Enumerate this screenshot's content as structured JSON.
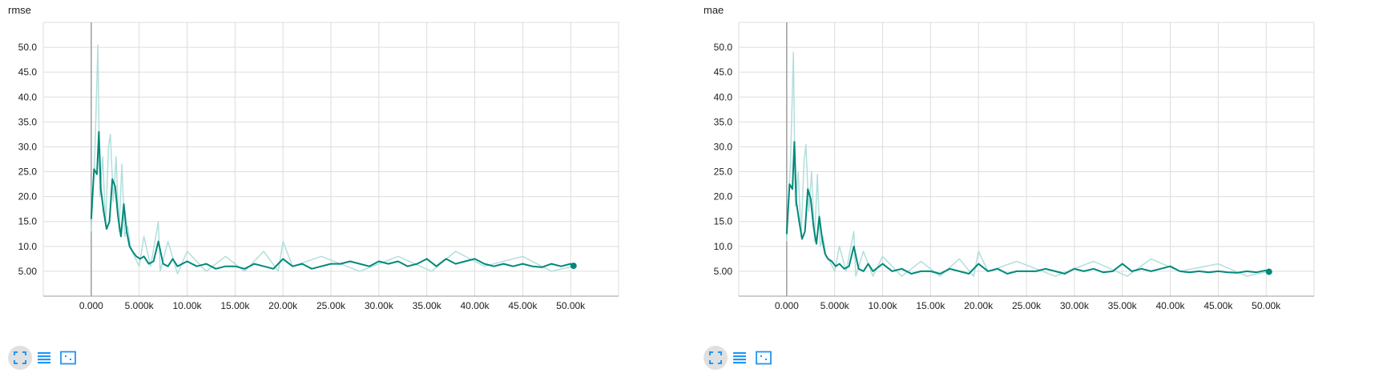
{
  "colors": {
    "line": "#00897b",
    "line_raw": "#b2dfdb",
    "grid": "#dddddd",
    "axis": "#9e9e9e",
    "zero_line": "#9e9e9e",
    "icon": "#2196f3"
  },
  "toolbar": {
    "icons": [
      "fit-domain-icon",
      "log-scale-icon",
      "toggle-y-axis-icon"
    ]
  },
  "chart_data": [
    {
      "type": "line",
      "title": "rmse",
      "xlim": [
        -5000,
        55000
      ],
      "ylim": [
        0,
        55
      ],
      "x_ticks": [
        0,
        5000,
        10000,
        15000,
        20000,
        25000,
        30000,
        35000,
        40000,
        45000,
        50000
      ],
      "x_tick_labels": [
        "0.000",
        "5.000k",
        "10.00k",
        "15.00k",
        "20.00k",
        "25.00k",
        "30.00k",
        "35.00k",
        "40.00k",
        "45.00k",
        "50.00k"
      ],
      "y_ticks": [
        5,
        10,
        15,
        20,
        25,
        30,
        35,
        40,
        45,
        50
      ],
      "y_tick_labels": [
        "5.00",
        "10.0",
        "15.0",
        "20.0",
        "25.0",
        "30.0",
        "35.0",
        "40.0",
        "45.0",
        "50.0"
      ],
      "grid": true,
      "series": [
        {
          "x": [
            0,
            300,
            600,
            800,
            1000,
            1300,
            1600,
            1900,
            2200,
            2500,
            2800,
            3100,
            3400,
            3700,
            4000,
            4300,
            4700,
            5100,
            5500,
            6000,
            6500,
            7000,
            7500,
            8000,
            8500,
            9000,
            10000,
            11000,
            12000,
            13000,
            14000,
            15000,
            16000,
            17000,
            18000,
            19000,
            20000,
            21000,
            22000,
            23000,
            24000,
            25000,
            26000,
            27000,
            28000,
            29000,
            30000,
            31000,
            32000,
            33000,
            34000,
            35000,
            36000,
            37000,
            38000,
            39000,
            40000,
            41000,
            42000,
            43000,
            44000,
            45000,
            46000,
            47000,
            48000,
            49000,
            50000,
            50300
          ],
          "y": [
            15.5,
            25.5,
            24.5,
            33,
            21.5,
            17,
            13.5,
            15,
            23.5,
            22,
            16,
            12,
            18.5,
            13,
            10,
            9,
            8,
            7.5,
            8,
            6.5,
            7,
            11,
            6.5,
            6,
            7.5,
            6,
            7,
            6,
            6.5,
            5.5,
            6,
            6,
            5.5,
            6.5,
            6,
            5.5,
            7.5,
            6,
            6.5,
            5.5,
            6,
            6.5,
            6.5,
            7,
            6.5,
            6,
            7,
            6.5,
            7,
            6,
            6.5,
            7.5,
            6,
            7.5,
            6.5,
            7,
            7.5,
            6.5,
            6,
            6.5,
            6,
            6.5,
            6,
            5.8,
            6.5,
            6,
            6.5,
            6.1
          ]
        }
      ],
      "raw_series": {
        "x": [
          0,
          400,
          700,
          900,
          1200,
          1500,
          1800,
          2000,
          2300,
          2600,
          2900,
          3200,
          3500,
          3800,
          4100,
          4500,
          5000,
          5500,
          6200,
          7000,
          7200,
          8000,
          9000,
          10000,
          12000,
          14000,
          16000,
          18000,
          19500,
          20000,
          21000,
          24000,
          28000,
          32000,
          35500,
          38000,
          41000,
          45000,
          48000,
          50300
        ],
        "y": [
          13,
          30,
          50.5,
          20,
          28,
          14,
          30,
          32.5,
          19,
          28,
          13,
          26.5,
          12,
          14,
          10,
          8,
          6,
          12,
          6,
          15,
          5,
          11,
          4.5,
          9,
          5,
          8,
          5,
          9,
          5,
          11,
          6,
          8,
          5,
          8,
          5,
          9,
          6,
          8,
          5,
          6
        ]
      }
    },
    {
      "type": "line",
      "title": "mae",
      "xlim": [
        -5000,
        55000
      ],
      "ylim": [
        0,
        55
      ],
      "x_ticks": [
        0,
        5000,
        10000,
        15000,
        20000,
        25000,
        30000,
        35000,
        40000,
        45000,
        50000
      ],
      "x_tick_labels": [
        "0.000",
        "5.000k",
        "10.00k",
        "15.00k",
        "20.00k",
        "25.00k",
        "30.00k",
        "35.00k",
        "40.00k",
        "45.00k",
        "50.00k"
      ],
      "y_ticks": [
        5,
        10,
        15,
        20,
        25,
        30,
        35,
        40,
        45,
        50
      ],
      "y_tick_labels": [
        "5.00",
        "10.0",
        "15.0",
        "20.0",
        "25.0",
        "30.0",
        "35.0",
        "40.0",
        "45.0",
        "50.0"
      ],
      "grid": true,
      "series": [
        {
          "x": [
            0,
            300,
            600,
            800,
            1000,
            1300,
            1600,
            1900,
            2200,
            2500,
            2800,
            3100,
            3400,
            3700,
            4000,
            4300,
            4700,
            5100,
            5500,
            6000,
            6500,
            7000,
            7500,
            8000,
            8500,
            9000,
            10000,
            11000,
            12000,
            13000,
            14000,
            15000,
            16000,
            17000,
            18000,
            19000,
            20000,
            21000,
            22000,
            23000,
            24000,
            25000,
            26000,
            27000,
            28000,
            29000,
            30000,
            31000,
            32000,
            33000,
            34000,
            35000,
            36000,
            37000,
            38000,
            39000,
            40000,
            41000,
            42000,
            43000,
            44000,
            45000,
            46000,
            47000,
            48000,
            49000,
            50000,
            50300
          ],
          "y": [
            12.5,
            22.5,
            21.5,
            31,
            19,
            15,
            11.5,
            13,
            21.5,
            19.5,
            14,
            10.5,
            16,
            11.5,
            8.5,
            7.5,
            7,
            6,
            6.5,
            5.5,
            6,
            10,
            5.5,
            5,
            6.5,
            5,
            6.5,
            5,
            5.5,
            4.5,
            5,
            5,
            4.5,
            5.5,
            5,
            4.5,
            6.5,
            5,
            5.5,
            4.5,
            5,
            5,
            5,
            5.5,
            5,
            4.5,
            5.5,
            5,
            5.5,
            4.8,
            5,
            6.5,
            5,
            5.5,
            5,
            5.5,
            6,
            5,
            4.8,
            5,
            4.8,
            5,
            4.8,
            4.7,
            5,
            4.8,
            5.2,
            4.9
          ]
        }
      ],
      "raw_series": {
        "x": [
          0,
          400,
          700,
          900,
          1200,
          1500,
          1800,
          2000,
          2300,
          2600,
          2900,
          3200,
          3500,
          3800,
          4100,
          4500,
          5000,
          5500,
          6200,
          7000,
          7200,
          8000,
          9000,
          10000,
          12000,
          14000,
          16000,
          18000,
          19500,
          20000,
          21000,
          24000,
          28000,
          32000,
          35500,
          38000,
          41000,
          45000,
          48000,
          50300
        ],
        "y": [
          11,
          27,
          49,
          18,
          25,
          12,
          27,
          30.5,
          17,
          25,
          11,
          24.5,
          10,
          12,
          8,
          7,
          5,
          10,
          5,
          13,
          4,
          9,
          4,
          8,
          4,
          7,
          4,
          7.5,
          4,
          9,
          5,
          7,
          4,
          7,
          4,
          7.5,
          5,
          6.5,
          4,
          5
        ]
      }
    }
  ]
}
